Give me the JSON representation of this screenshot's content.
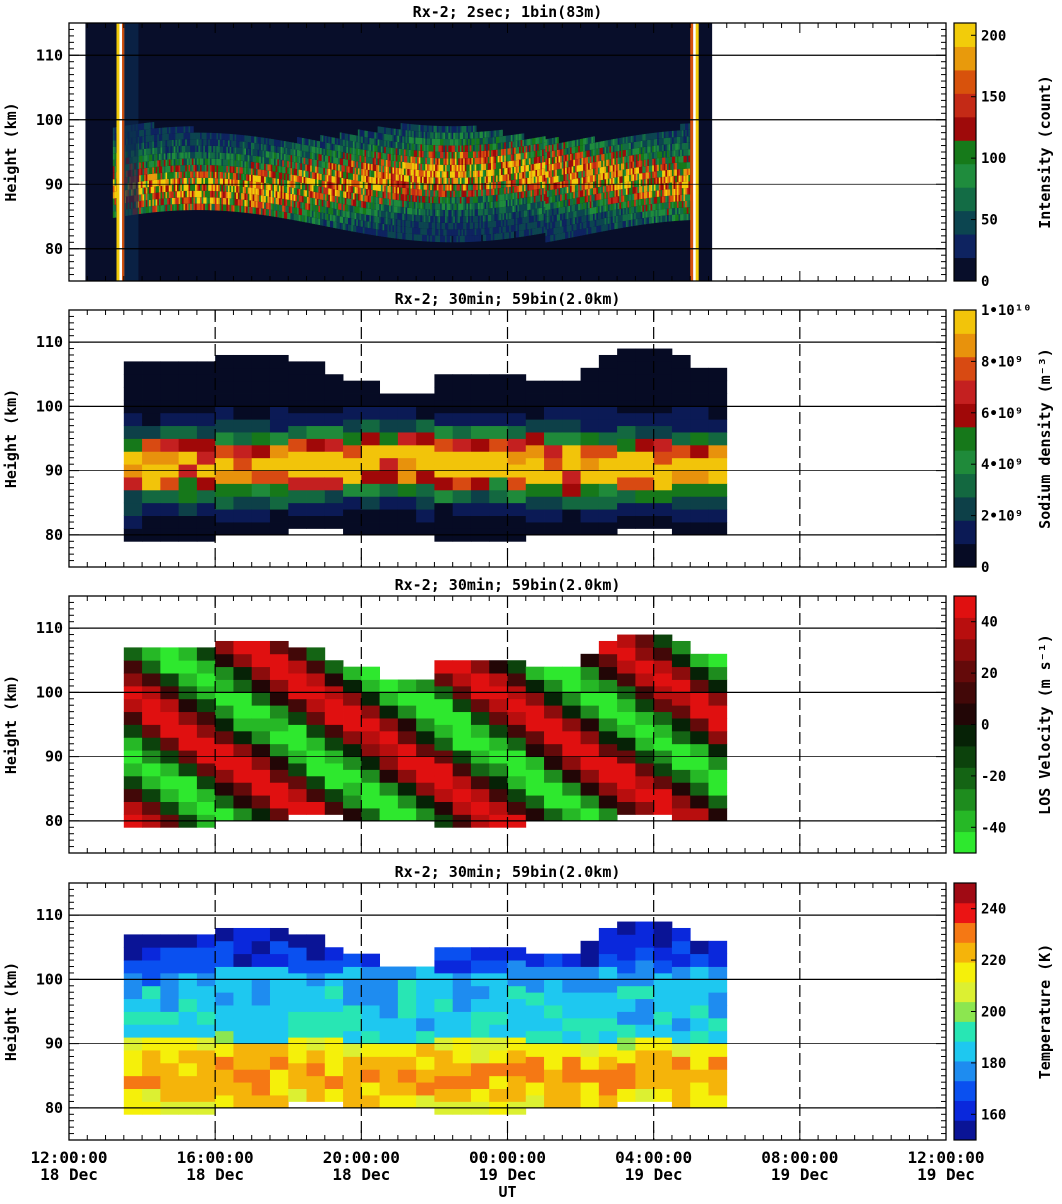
{
  "chart_data": [
    {
      "type": "heatmap",
      "title": "Rx-2;  2sec; 1bin(83m)",
      "xlabel": "",
      "ylabel": "Height (km)",
      "ylim": [
        75,
        115
      ],
      "yticks": [
        "80",
        "90",
        "100",
        "110"
      ],
      "colorbar": {
        "label": "Intensity (count)",
        "range": [
          0,
          210
        ],
        "ticks": [
          "0",
          "50",
          "100",
          "150",
          "200"
        ],
        "tick_values": [
          0,
          50,
          100,
          150,
          200
        ],
        "colors": [
          "#080e2a",
          "#0e2360",
          "#0c4550",
          "#136c45",
          "#1f8c3d",
          "#167a1a",
          "#9e0a0a",
          "#c42a16",
          "#d8520c",
          "#e89a0c",
          "#f2cc0a"
        ]
      },
      "data_extent_hours": [
        1.2,
        17.6
      ],
      "layer_km": [
        82,
        97
      ],
      "grid": true
    },
    {
      "type": "heatmap",
      "title": "Rx-2; 30min; 59bin(2.0km)",
      "xlabel": "",
      "ylabel": "Height (km)",
      "ylim": [
        75,
        115
      ],
      "yticks": [
        "80",
        "90",
        "100",
        "110"
      ],
      "colorbar": {
        "label": "Sodium density (m⁻³)",
        "range": [
          0,
          10
        ],
        "ticks": [
          "0",
          "2•10⁹",
          "4•10⁹",
          "6•10⁹",
          "8•10⁹",
          "1•10¹⁰"
        ],
        "tick_values": [
          0,
          2,
          4,
          6,
          8,
          10
        ],
        "colors": [
          "#060b24",
          "#0b1a55",
          "#0d4048",
          "#136840",
          "#1f8a3a",
          "#16781a",
          "#a00808",
          "#c42020",
          "#d84a12",
          "#e8920c",
          "#f2c40a"
        ]
      },
      "data_extent_hours": [
        1.5,
        18.0
      ],
      "peak_km": 90,
      "grid": true
    },
    {
      "type": "heatmap",
      "title": "Rx-2; 30min; 59bin(2.0km)",
      "xlabel": "",
      "ylabel": "Height (km)",
      "ylim": [
        75,
        115
      ],
      "yticks": [
        "80",
        "90",
        "100",
        "110"
      ],
      "colorbar": {
        "label": "LOS Velocity (m s⁻¹)",
        "range": [
          -50,
          50
        ],
        "ticks": [
          "-40",
          "-20",
          "0",
          "20",
          "40"
        ],
        "tick_values": [
          -40,
          -20,
          0,
          20,
          40
        ],
        "colors": [
          "#2ee82e",
          "#26b826",
          "#1e8c1e",
          "#146414",
          "#0c420c",
          "#062206",
          "#220606",
          "#420808",
          "#640a0a",
          "#8c0c0c",
          "#b80e0e",
          "#e01010"
        ]
      },
      "data_extent_hours": [
        1.5,
        18.0
      ],
      "grid": true
    },
    {
      "type": "heatmap",
      "title": "Rx-2; 30min; 59bin(2.0km)",
      "xlabel": "UT",
      "ylabel": "Height (km)",
      "ylim": [
        75,
        115
      ],
      "yticks": [
        "80",
        "90",
        "100",
        "110"
      ],
      "colorbar": {
        "label": "Temperature (K)",
        "range": [
          150,
          250
        ],
        "ticks": [
          "160",
          "180",
          "200",
          "220",
          "240"
        ],
        "tick_values": [
          160,
          180,
          200,
          220,
          240
        ],
        "colors": [
          "#0a1496",
          "#0a28dc",
          "#0a50f0",
          "#1e8cf0",
          "#1ec8f0",
          "#28e6b4",
          "#8ce650",
          "#dcf032",
          "#f5f00a",
          "#f5b40a",
          "#f57814",
          "#eb1414",
          "#a00a14"
        ]
      },
      "data_extent_hours": [
        1.5,
        18.0
      ],
      "grid": true
    }
  ],
  "x_axis": {
    "range_hours": [
      0,
      24
    ],
    "ticks": [
      {
        "time": "12:00:00",
        "date": "18 Dec"
      },
      {
        "time": "16:00:00",
        "date": "18 Dec"
      },
      {
        "time": "20:00:00",
        "date": "18 Dec"
      },
      {
        "time": "00:00:00",
        "date": "19 Dec"
      },
      {
        "time": "04:00:00",
        "date": "19 Dec"
      },
      {
        "time": "08:00:00",
        "date": "19 Dec"
      },
      {
        "time": "12:00:00",
        "date": "19 Dec"
      }
    ],
    "label": "UT"
  }
}
